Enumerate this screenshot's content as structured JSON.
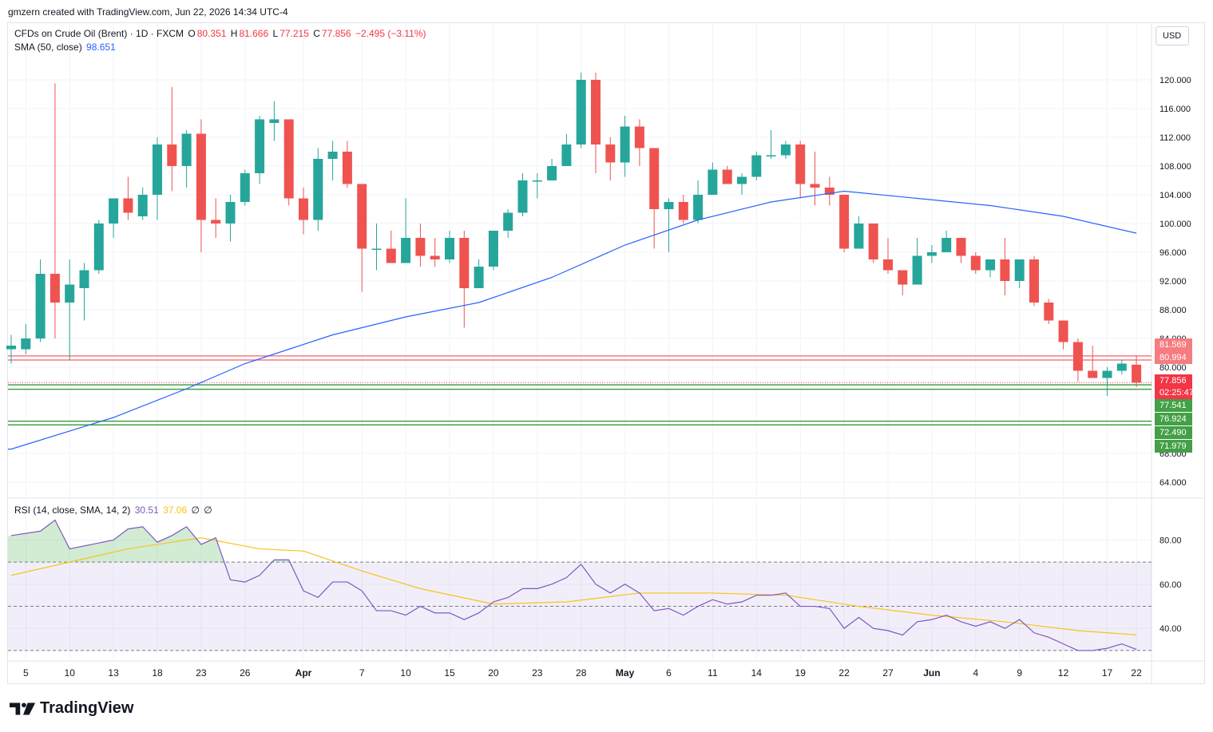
{
  "credit": "gmzern created with TradingView.com, Jun 22, 2026 14:34 UTC-4",
  "legend": {
    "symbol": "CFDs on Crude Oil (Brent) · 1D · FXCM",
    "open_label": "O",
    "open": "80.351",
    "high_label": "H",
    "high": "81.666",
    "low_label": "L",
    "low": "77.215",
    "close_label": "C",
    "close": "77.856",
    "change": "−2.495 (−3.11%)",
    "sma_label": "SMA (50, close)",
    "sma_value": "98.651",
    "rsi_label": "RSI (14, close, SMA, 14, 2)",
    "rsi_value": "30.51",
    "rsi_sma": "37.06",
    "rsi_extra1": "∅",
    "rsi_extra2": "∅"
  },
  "currency_button": "USD",
  "price_tags": [
    {
      "label": "81.569",
      "color": "#f77c80"
    },
    {
      "label": "80.994",
      "color": "#f77c80"
    },
    {
      "label": "77.856",
      "color": "#f23645"
    },
    {
      "label": "02:25:47",
      "color": "#f23645"
    },
    {
      "label": "77.541",
      "color": "#43a047"
    },
    {
      "label": "76.924",
      "color": "#43a047"
    },
    {
      "label": "72.490",
      "color": "#43a047"
    },
    {
      "label": "71.979",
      "color": "#43a047"
    }
  ],
  "price_axis_labels": [
    "120.000",
    "116.000",
    "112.000",
    "108.000",
    "104.000",
    "100.000",
    "96.000",
    "92.000",
    "88.000",
    "84.000",
    "80.000",
    "68.000",
    "64.000"
  ],
  "rsi_axis_labels": [
    "80.00",
    "60.00",
    "40.00"
  ],
  "time_axis_labels": [
    "5",
    "10",
    "13",
    "18",
    "23",
    "26",
    "Apr",
    "7",
    "10",
    "15",
    "20",
    "23",
    "28",
    "May",
    "6",
    "11",
    "14",
    "19",
    "22",
    "27",
    "Jun",
    "4",
    "9",
    "12",
    "17",
    "22"
  ],
  "brand": "TradingView",
  "colors": {
    "up": "#26a69a",
    "down": "#ef5350",
    "sma": "#2962ff",
    "rsi": "#7e57c2",
    "rsi_sma": "#f5c518"
  },
  "chart_data": {
    "type": "candlestick",
    "title": "CFDs on Crude Oil (Brent) · 1D · FXCM",
    "candles": [
      {
        "date": "Mar 4",
        "o": 82.5,
        "h": 84.5,
        "l": 80.5,
        "c": 83.0
      },
      {
        "date": "Mar 5",
        "o": 82.5,
        "h": 86.0,
        "l": 81.8,
        "c": 84.0
      },
      {
        "date": "Mar 6",
        "o": 84.0,
        "h": 95.0,
        "l": 83.5,
        "c": 93.0
      },
      {
        "date": "Mar 9",
        "o": 93.0,
        "h": 119.5,
        "l": 84.0,
        "c": 89.0
      },
      {
        "date": "Mar 10",
        "o": 89.0,
        "h": 95.0,
        "l": 81.0,
        "c": 91.5
      },
      {
        "date": "Mar 11",
        "o": 91.0,
        "h": 94.5,
        "l": 86.5,
        "c": 93.5
      },
      {
        "date": "Mar 12",
        "o": 93.5,
        "h": 100.5,
        "l": 93.0,
        "c": 100.0
      },
      {
        "date": "Mar 13",
        "o": 100.0,
        "h": 103.5,
        "l": 98.0,
        "c": 103.5
      },
      {
        "date": "Mar 16",
        "o": 103.5,
        "h": 106.5,
        "l": 100.5,
        "c": 101.5
      },
      {
        "date": "Mar 17",
        "o": 101.0,
        "h": 105.0,
        "l": 100.5,
        "c": 104.0
      },
      {
        "date": "Mar 18",
        "o": 104.0,
        "h": 112.0,
        "l": 100.5,
        "c": 111.0
      },
      {
        "date": "Mar 19",
        "o": 111.0,
        "h": 119.0,
        "l": 104.5,
        "c": 108.0
      },
      {
        "date": "Mar 20",
        "o": 108.0,
        "h": 113.0,
        "l": 105.0,
        "c": 112.5
      },
      {
        "date": "Mar 23",
        "o": 112.5,
        "h": 114.5,
        "l": 96.0,
        "c": 100.5
      },
      {
        "date": "Mar 24",
        "o": 100.5,
        "h": 103.5,
        "l": 98.0,
        "c": 100.0
      },
      {
        "date": "Mar 25",
        "o": 100.0,
        "h": 104.0,
        "l": 97.5,
        "c": 103.0
      },
      {
        "date": "Mar 26",
        "o": 103.0,
        "h": 107.5,
        "l": 102.5,
        "c": 107.0
      },
      {
        "date": "Mar 27",
        "o": 107.0,
        "h": 115.0,
        "l": 105.5,
        "c": 114.5
      },
      {
        "date": "Mar 30",
        "o": 114.0,
        "h": 117.0,
        "l": 111.5,
        "c": 114.5
      },
      {
        "date": "Mar 31",
        "o": 114.5,
        "h": 114.5,
        "l": 102.5,
        "c": 103.5
      },
      {
        "date": "Apr 1",
        "o": 103.5,
        "h": 105.0,
        "l": 98.5,
        "c": 100.5
      },
      {
        "date": "Apr 2",
        "o": 100.5,
        "h": 110.5,
        "l": 99.0,
        "c": 109.0
      },
      {
        "date": "Apr 3",
        "o": 109.0,
        "h": 111.5,
        "l": 106.0,
        "c": 110.0
      },
      {
        "date": "Apr 6",
        "o": 110.0,
        "h": 111.5,
        "l": 105.0,
        "c": 105.5
      },
      {
        "date": "Apr 7",
        "o": 105.5,
        "h": 105.5,
        "l": 90.5,
        "c": 96.5
      },
      {
        "date": "Apr 8",
        "o": 96.5,
        "h": 100.0,
        "l": 93.5,
        "c": 96.5
      },
      {
        "date": "Apr 9",
        "o": 96.5,
        "h": 99.0,
        "l": 94.5,
        "c": 94.5
      },
      {
        "date": "Apr 10",
        "o": 94.5,
        "h": 103.5,
        "l": 94.5,
        "c": 98.0
      },
      {
        "date": "Apr 13",
        "o": 98.0,
        "h": 100.0,
        "l": 94.0,
        "c": 95.5
      },
      {
        "date": "Apr 14",
        "o": 95.5,
        "h": 98.0,
        "l": 94.0,
        "c": 95.0
      },
      {
        "date": "Apr 15",
        "o": 95.0,
        "h": 99.0,
        "l": 94.5,
        "c": 98.0
      },
      {
        "date": "Apr 16",
        "o": 98.0,
        "h": 99.0,
        "l": 85.5,
        "c": 91.0
      },
      {
        "date": "Apr 17",
        "o": 91.0,
        "h": 95.0,
        "l": 91.0,
        "c": 94.0
      },
      {
        "date": "Apr 20",
        "o": 94.0,
        "h": 99.0,
        "l": 93.5,
        "c": 99.0
      },
      {
        "date": "Apr 21",
        "o": 99.0,
        "h": 102.0,
        "l": 98.0,
        "c": 101.5
      },
      {
        "date": "Apr 22",
        "o": 101.5,
        "h": 107.0,
        "l": 101.0,
        "c": 106.0
      },
      {
        "date": "Apr 23",
        "o": 106.0,
        "h": 107.0,
        "l": 103.5,
        "c": 106.0
      },
      {
        "date": "Apr 24",
        "o": 106.0,
        "h": 109.0,
        "l": 106.0,
        "c": 108.0
      },
      {
        "date": "Apr 27",
        "o": 108.0,
        "h": 112.5,
        "l": 108.0,
        "c": 111.0
      },
      {
        "date": "Apr 28",
        "o": 111.0,
        "h": 121.0,
        "l": 110.5,
        "c": 120.0
      },
      {
        "date": "Apr 29",
        "o": 120.0,
        "h": 121.0,
        "l": 107.0,
        "c": 111.0
      },
      {
        "date": "Apr 30",
        "o": 111.0,
        "h": 112.0,
        "l": 106.0,
        "c": 108.5
      },
      {
        "date": "May 1",
        "o": 108.5,
        "h": 115.0,
        "l": 106.5,
        "c": 113.5
      },
      {
        "date": "May 4",
        "o": 113.5,
        "h": 114.5,
        "l": 108.0,
        "c": 110.5
      },
      {
        "date": "May 5",
        "o": 110.5,
        "h": 110.5,
        "l": 96.5,
        "c": 102.0
      },
      {
        "date": "May 6",
        "o": 102.0,
        "h": 103.5,
        "l": 96.0,
        "c": 103.0
      },
      {
        "date": "May 7",
        "o": 103.0,
        "h": 104.0,
        "l": 100.0,
        "c": 100.5
      },
      {
        "date": "May 8",
        "o": 100.5,
        "h": 106.0,
        "l": 100.0,
        "c": 104.0
      },
      {
        "date": "May 11",
        "o": 104.0,
        "h": 108.5,
        "l": 104.0,
        "c": 107.5
      },
      {
        "date": "May 12",
        "o": 107.5,
        "h": 108.0,
        "l": 105.5,
        "c": 105.5
      },
      {
        "date": "May 13",
        "o": 105.5,
        "h": 107.0,
        "l": 104.0,
        "c": 106.5
      },
      {
        "date": "May 14",
        "o": 106.5,
        "h": 110.0,
        "l": 106.0,
        "c": 109.5
      },
      {
        "date": "May 15",
        "o": 109.5,
        "h": 113.0,
        "l": 109.0,
        "c": 109.5
      },
      {
        "date": "May 18",
        "o": 109.5,
        "h": 111.5,
        "l": 109.0,
        "c": 111.0
      },
      {
        "date": "May 19",
        "o": 111.0,
        "h": 111.5,
        "l": 103.5,
        "c": 105.5
      },
      {
        "date": "May 20",
        "o": 105.5,
        "h": 110.0,
        "l": 102.5,
        "c": 105.0
      },
      {
        "date": "May 21",
        "o": 105.0,
        "h": 106.5,
        "l": 102.5,
        "c": 104.0
      },
      {
        "date": "May 22",
        "o": 104.0,
        "h": 104.0,
        "l": 96.0,
        "c": 96.5
      },
      {
        "date": "May 25",
        "o": 96.5,
        "h": 101.0,
        "l": 96.5,
        "c": 100.0
      },
      {
        "date": "May 26",
        "o": 100.0,
        "h": 100.0,
        "l": 94.5,
        "c": 95.0
      },
      {
        "date": "May 27",
        "o": 95.0,
        "h": 98.0,
        "l": 93.0,
        "c": 93.5
      },
      {
        "date": "May 28",
        "o": 93.5,
        "h": 93.5,
        "l": 90.0,
        "c": 91.5
      },
      {
        "date": "May 29",
        "o": 91.5,
        "h": 98.0,
        "l": 91.5,
        "c": 95.5
      },
      {
        "date": "Jun 1",
        "o": 95.5,
        "h": 97.0,
        "l": 94.5,
        "c": 96.0
      },
      {
        "date": "Jun 2",
        "o": 96.0,
        "h": 99.0,
        "l": 96.0,
        "c": 98.0
      },
      {
        "date": "Jun 3",
        "o": 98.0,
        "h": 98.0,
        "l": 94.5,
        "c": 95.5
      },
      {
        "date": "Jun 4",
        "o": 95.5,
        "h": 96.0,
        "l": 93.0,
        "c": 93.5
      },
      {
        "date": "Jun 5",
        "o": 93.5,
        "h": 95.0,
        "l": 92.5,
        "c": 95.0
      },
      {
        "date": "Jun 8",
        "o": 95.0,
        "h": 98.0,
        "l": 90.0,
        "c": 92.0
      },
      {
        "date": "Jun 9",
        "o": 92.0,
        "h": 95.0,
        "l": 91.0,
        "c": 95.0
      },
      {
        "date": "Jun 10",
        "o": 95.0,
        "h": 95.5,
        "l": 88.5,
        "c": 89.0
      },
      {
        "date": "Jun 11",
        "o": 89.0,
        "h": 89.5,
        "l": 86.0,
        "c": 86.5
      },
      {
        "date": "Jun 12",
        "o": 86.5,
        "h": 86.5,
        "l": 82.5,
        "c": 83.5
      },
      {
        "date": "Jun 15",
        "o": 83.5,
        "h": 84.0,
        "l": 78.0,
        "c": 79.5
      },
      {
        "date": "Jun 16",
        "o": 79.5,
        "h": 83.0,
        "l": 78.5,
        "c": 78.5
      },
      {
        "date": "Jun 17",
        "o": 78.5,
        "h": 80.0,
        "l": 76.0,
        "c": 79.5
      },
      {
        "date": "Jun 18",
        "o": 79.5,
        "h": 81.0,
        "l": 79.0,
        "c": 80.5
      },
      {
        "date": "Jun 22",
        "o": 80.351,
        "h": 81.666,
        "l": 77.215,
        "c": 77.856
      }
    ],
    "sma50": [
      {
        "date": "Mar 4",
        "v": 68.6
      },
      {
        "date": "Mar 13",
        "v": 73.0
      },
      {
        "date": "Mar 20",
        "v": 77.0
      },
      {
        "date": "Mar 26",
        "v": 80.5
      },
      {
        "date": "Mar 31",
        "v": 82.5
      },
      {
        "date": "Apr 3",
        "v": 84.5
      },
      {
        "date": "Apr 10",
        "v": 87.0
      },
      {
        "date": "Apr 17",
        "v": 89.0
      },
      {
        "date": "Apr 24",
        "v": 92.5
      },
      {
        "date": "May 1",
        "v": 97.0
      },
      {
        "date": "May 8",
        "v": 100.5
      },
      {
        "date": "May 15",
        "v": 103.0
      },
      {
        "date": "May 22",
        "v": 104.5
      },
      {
        "date": "May 29",
        "v": 103.5
      },
      {
        "date": "Jun 5",
        "v": 102.5
      },
      {
        "date": "Jun 12",
        "v": 101.0
      },
      {
        "date": "Jun 22",
        "v": 98.651
      }
    ],
    "rsi": [
      {
        "date": "Mar 4",
        "v": 82
      },
      {
        "date": "Mar 6",
        "v": 84
      },
      {
        "date": "Mar 9",
        "v": 89
      },
      {
        "date": "Mar 10",
        "v": 76
      },
      {
        "date": "Mar 13",
        "v": 80
      },
      {
        "date": "Mar 16",
        "v": 85
      },
      {
        "date": "Mar 17",
        "v": 86
      },
      {
        "date": "Mar 18",
        "v": 79
      },
      {
        "date": "Mar 19",
        "v": 82
      },
      {
        "date": "Mar 20",
        "v": 86
      },
      {
        "date": "Mar 23",
        "v": 78
      },
      {
        "date": "Mar 24",
        "v": 81
      },
      {
        "date": "Mar 25",
        "v": 62
      },
      {
        "date": "Mar 26",
        "v": 61
      },
      {
        "date": "Mar 27",
        "v": 64
      },
      {
        "date": "Mar 30",
        "v": 71
      },
      {
        "date": "Mar 31",
        "v": 71
      },
      {
        "date": "Apr 1",
        "v": 57
      },
      {
        "date": "Apr 2",
        "v": 54
      },
      {
        "date": "Apr 3",
        "v": 61
      },
      {
        "date": "Apr 6",
        "v": 61
      },
      {
        "date": "Apr 7",
        "v": 57
      },
      {
        "date": "Apr 8",
        "v": 48
      },
      {
        "date": "Apr 9",
        "v": 48
      },
      {
        "date": "Apr 10",
        "v": 46
      },
      {
        "date": "Apr 13",
        "v": 50
      },
      {
        "date": "Apr 14",
        "v": 47
      },
      {
        "date": "Apr 15",
        "v": 47
      },
      {
        "date": "Apr 16",
        "v": 44
      },
      {
        "date": "Apr 17",
        "v": 47
      },
      {
        "date": "Apr 20",
        "v": 52
      },
      {
        "date": "Apr 21",
        "v": 54
      },
      {
        "date": "Apr 22",
        "v": 58
      },
      {
        "date": "Apr 23",
        "v": 58
      },
      {
        "date": "Apr 24",
        "v": 60
      },
      {
        "date": "Apr 27",
        "v": 63
      },
      {
        "date": "Apr 28",
        "v": 69
      },
      {
        "date": "Apr 29",
        "v": 60
      },
      {
        "date": "Apr 30",
        "v": 56
      },
      {
        "date": "May 1",
        "v": 60
      },
      {
        "date": "May 4",
        "v": 56
      },
      {
        "date": "May 5",
        "v": 48
      },
      {
        "date": "May 6",
        "v": 49
      },
      {
        "date": "May 7",
        "v": 46
      },
      {
        "date": "May 8",
        "v": 50
      },
      {
        "date": "May 11",
        "v": 53
      },
      {
        "date": "May 12",
        "v": 51
      },
      {
        "date": "May 13",
        "v": 52
      },
      {
        "date": "May 14",
        "v": 55
      },
      {
        "date": "May 15",
        "v": 55
      },
      {
        "date": "May 18",
        "v": 56
      },
      {
        "date": "May 19",
        "v": 50
      },
      {
        "date": "May 20",
        "v": 50
      },
      {
        "date": "May 21",
        "v": 49
      },
      {
        "date": "May 22",
        "v": 40
      },
      {
        "date": "May 25",
        "v": 45
      },
      {
        "date": "May 26",
        "v": 40
      },
      {
        "date": "May 27",
        "v": 39
      },
      {
        "date": "May 28",
        "v": 37
      },
      {
        "date": "May 29",
        "v": 43
      },
      {
        "date": "Jun 1",
        "v": 44
      },
      {
        "date": "Jun 2",
        "v": 46
      },
      {
        "date": "Jun 3",
        "v": 43
      },
      {
        "date": "Jun 4",
        "v": 41
      },
      {
        "date": "Jun 5",
        "v": 43
      },
      {
        "date": "Jun 8",
        "v": 40
      },
      {
        "date": "Jun 9",
        "v": 44
      },
      {
        "date": "Jun 10",
        "v": 38
      },
      {
        "date": "Jun 11",
        "v": 36
      },
      {
        "date": "Jun 12",
        "v": 33
      },
      {
        "date": "Jun 15",
        "v": 30
      },
      {
        "date": "Jun 16",
        "v": 30
      },
      {
        "date": "Jun 17",
        "v": 31
      },
      {
        "date": "Jun 18",
        "v": 33
      },
      {
        "date": "Jun 22",
        "v": 30.51
      }
    ],
    "rsi_sma": [
      {
        "date": "Mar 4",
        "v": 64
      },
      {
        "date": "Mar 16",
        "v": 76
      },
      {
        "date": "Mar 23",
        "v": 81
      },
      {
        "date": "Mar 27",
        "v": 76
      },
      {
        "date": "Apr 1",
        "v": 75
      },
      {
        "date": "Apr 7",
        "v": 66
      },
      {
        "date": "Apr 13",
        "v": 58
      },
      {
        "date": "Apr 20",
        "v": 51
      },
      {
        "date": "Apr 27",
        "v": 52
      },
      {
        "date": "May 4",
        "v": 56
      },
      {
        "date": "May 11",
        "v": 56
      },
      {
        "date": "May 18",
        "v": 55
      },
      {
        "date": "May 25",
        "v": 50
      },
      {
        "date": "Jun 1",
        "v": 46
      },
      {
        "date": "Jun 8",
        "v": 43
      },
      {
        "date": "Jun 15",
        "v": 39
      },
      {
        "date": "Jun 22",
        "v": 37.06
      }
    ],
    "horizontal_lines": [
      {
        "value": 81.569,
        "color": "#f77c80"
      },
      {
        "value": 80.994,
        "color": "#f77c80"
      },
      {
        "value": 77.541,
        "color": "#43a047"
      },
      {
        "value": 76.924,
        "color": "#43a047"
      },
      {
        "value": 72.49,
        "color": "#43a047"
      },
      {
        "value": 71.979,
        "color": "#43a047"
      }
    ],
    "price_range": [
      62,
      124
    ],
    "rsi_range": [
      26,
      91
    ],
    "rsi_bands": [
      30,
      50,
      70
    ],
    "grid": true
  }
}
